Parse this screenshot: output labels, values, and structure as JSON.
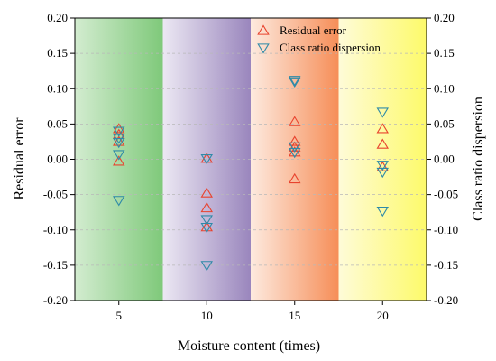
{
  "chart_data": {
    "type": "scatter",
    "xlabel": "Moisture content (times)",
    "ylabel": "Residual error",
    "y2label": "Class ratio dispersion",
    "categories": [
      "5",
      "10",
      "15",
      "20"
    ],
    "x_ticks": [
      5,
      10,
      15,
      20
    ],
    "xlim": [
      2.5,
      22.5
    ],
    "ylim": [
      -0.2,
      0.2
    ],
    "y2lim": [
      -0.2,
      0.2
    ],
    "y_ticks": [
      "-0.20",
      "-0.15",
      "-0.10",
      "-0.05",
      "0.00",
      "0.05",
      "0.10",
      "0.15",
      "0.20"
    ],
    "grid": "horizontal dashed",
    "legend_position": "top-right",
    "background_bands": [
      {
        "x_from": 2.5,
        "x_to": 7.5,
        "color_from": "#d3ecd0",
        "color_to": "#7fc97a"
      },
      {
        "x_from": 7.5,
        "x_to": 12.5,
        "color_from": "#ece8f3",
        "color_to": "#9a86bd"
      },
      {
        "x_from": 12.5,
        "x_to": 17.5,
        "color_from": "#fdeadf",
        "color_to": "#f68e58"
      },
      {
        "x_from": 17.5,
        "x_to": 22.5,
        "color_from": "#fefbd8",
        "color_to": "#fdfa6a"
      }
    ],
    "series": [
      {
        "name": "Residual error",
        "marker": "triangle-up",
        "color": "#e8432e",
        "axis": "left",
        "points": [
          [
            5,
            0.043
          ],
          [
            5,
            0.035
          ],
          [
            5,
            0.025
          ],
          [
            5,
            -0.003
          ],
          [
            10,
            0.001
          ],
          [
            10,
            -0.048
          ],
          [
            10,
            -0.069
          ],
          [
            10,
            -0.096
          ],
          [
            15,
            0.053
          ],
          [
            15,
            0.025
          ],
          [
            15,
            0.017
          ],
          [
            15,
            0.01
          ],
          [
            15,
            -0.028
          ],
          [
            20,
            0.043
          ],
          [
            20,
            0.021
          ],
          [
            20,
            -0.011
          ]
        ]
      },
      {
        "name": "Class ratio dispersion",
        "marker": "triangle-down",
        "color": "#2f8aa8",
        "axis": "right",
        "points": [
          [
            5,
            0.04
          ],
          [
            5,
            0.03
          ],
          [
            5,
            0.024
          ],
          [
            5,
            0.007
          ],
          [
            5,
            -0.058
          ],
          [
            10,
            0.001
          ],
          [
            10,
            -0.085
          ],
          [
            10,
            -0.096
          ],
          [
            10,
            -0.15
          ],
          [
            15,
            0.112
          ],
          [
            15,
            0.11
          ],
          [
            15,
            0.018
          ],
          [
            15,
            0.01
          ],
          [
            20,
            0.067
          ],
          [
            20,
            -0.008
          ],
          [
            20,
            -0.018
          ],
          [
            20,
            -0.073
          ]
        ]
      }
    ]
  }
}
